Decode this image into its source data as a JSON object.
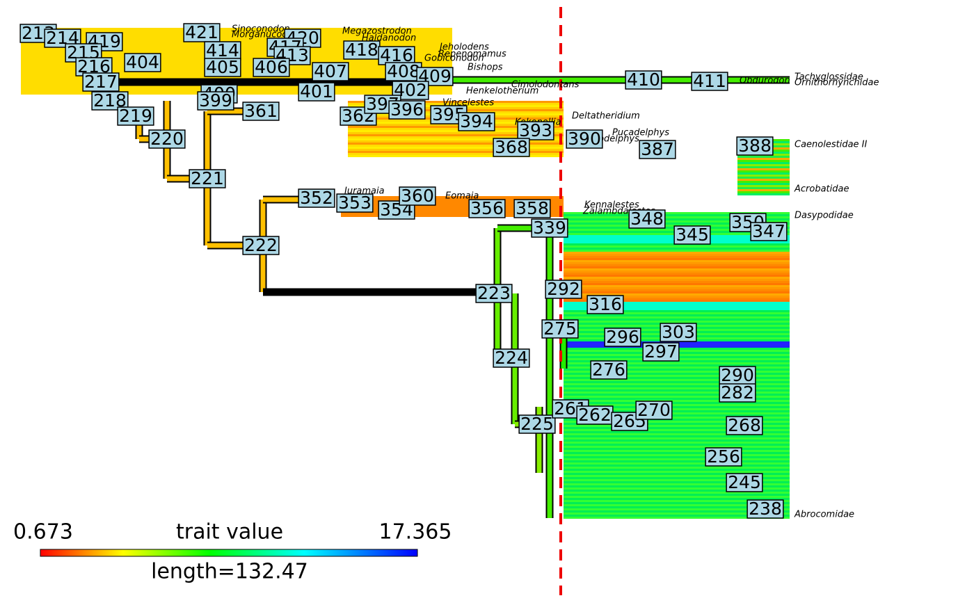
{
  "legend": {
    "min": "0.673",
    "title": "trait value",
    "max": "17.365",
    "length": "length=132.47"
  },
  "nodes": [
    "213",
    "214",
    "419",
    "215",
    "216",
    "404",
    "217",
    "218",
    "219",
    "220",
    "221",
    "421",
    "420",
    "414",
    "417",
    "413",
    "405",
    "406",
    "418",
    "416",
    "407",
    "408",
    "409",
    "402",
    "401",
    "400",
    "399",
    "361",
    "362",
    "397",
    "396",
    "395",
    "394",
    "393",
    "390",
    "368",
    "387",
    "388",
    "410",
    "411",
    "352",
    "353",
    "354",
    "360",
    "356",
    "358",
    "222",
    "223",
    "224",
    "225",
    "339",
    "348",
    "345",
    "350",
    "347",
    "292",
    "316",
    "275",
    "296",
    "303",
    "297",
    "276",
    "290",
    "282",
    "261",
    "262",
    "265",
    "270",
    "268",
    "256",
    "245",
    "238"
  ],
  "tips": [
    "Sinoconodon",
    "Morganucodon",
    "Megazostrodon",
    "Haldanodon",
    "Jeholodens",
    "Repenomamus",
    "Gobiconodon",
    "Bishops",
    "Cimolodontans",
    "Henkelotherium",
    "Vincelestes",
    "Deltatheridium",
    "Kokopellia",
    "Pucadelphys",
    "Sinodelphys",
    "Obdurodon",
    "Tachyglossidae",
    "Ornithorhynchidae",
    "Caenolestidae II",
    "Acrobatidae",
    "Juramaia",
    "Eomaia",
    "Kennalestes",
    "Zalambdalestes",
    "Dasypodidae",
    "Abrocomidae"
  ]
}
